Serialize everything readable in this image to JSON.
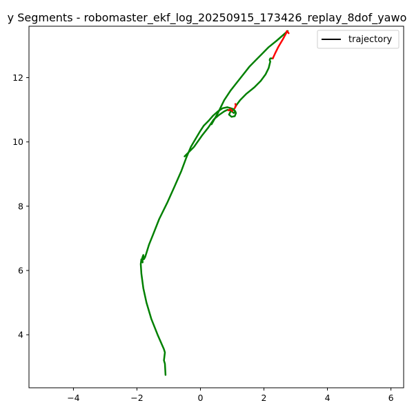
{
  "chart_data": {
    "type": "line",
    "title": "y Segments - robomaster_ekf_log_20250915_173426_replay_8dof_yawo",
    "xlabel": "",
    "ylabel": "",
    "xlim": [
      -5.4,
      6.4
    ],
    "ylim": [
      2.35,
      13.6
    ],
    "xticks": [
      -4,
      -2,
      0,
      2,
      4,
      6
    ],
    "yticks": [
      4,
      6,
      8,
      10,
      12
    ],
    "grid": false,
    "legend": {
      "placement": "top-right",
      "entries": [
        {
          "label": "trajectory",
          "color": "#000000"
        }
      ]
    },
    "colors": {
      "main_path": "#008000",
      "flagged_path": "#ff0000"
    },
    "series": [
      {
        "name": "trajectory",
        "color": "#008000",
        "x": [
          -1.1,
          -1.12,
          -1.15,
          -1.12,
          -1.15,
          -1.35,
          -1.55,
          -1.7,
          -1.8,
          -1.86,
          -1.88,
          -1.86,
          -1.84,
          -1.82,
          -1.83,
          -1.8,
          -1.78,
          -1.74,
          -1.7,
          -1.62,
          -1.5,
          -1.3,
          -1.05,
          -0.8,
          -0.6,
          -0.45,
          -0.3,
          -0.15,
          0.0,
          0.1,
          0.25,
          0.4,
          0.55,
          0.7,
          0.85,
          0.95,
          1.05,
          1.12,
          1.08,
          0.98,
          0.9,
          0.95,
          1.05,
          1.1,
          1.05,
          0.95,
          0.85,
          0.75,
          0.6,
          0.42,
          0.25,
          0.05,
          -0.2,
          -0.5
        ],
        "y": [
          2.75,
          3.1,
          3.2,
          3.45,
          3.55,
          4.0,
          4.5,
          5.0,
          5.45,
          5.9,
          6.2,
          6.35,
          6.33,
          6.25,
          6.4,
          6.48,
          6.35,
          6.42,
          6.55,
          6.8,
          7.1,
          7.6,
          8.1,
          8.65,
          9.1,
          9.5,
          9.85,
          10.1,
          10.35,
          10.5,
          10.65,
          10.82,
          10.95,
          11.05,
          11.08,
          11.05,
          11.02,
          10.9,
          10.8,
          10.78,
          10.85,
          10.95,
          11.0,
          10.95,
          10.9,
          10.98,
          11.0,
          10.95,
          10.85,
          10.7,
          10.45,
          10.2,
          9.85,
          9.55
        ]
      },
      {
        "name": "",
        "color": "#008000",
        "x": [
          0.35,
          0.55,
          0.75,
          0.95,
          1.15,
          1.35,
          1.55,
          1.75,
          1.95,
          2.15,
          2.4,
          2.6,
          2.75
        ],
        "y": [
          10.55,
          10.9,
          11.3,
          11.6,
          11.85,
          12.1,
          12.35,
          12.55,
          12.75,
          12.95,
          13.15,
          13.32,
          13.45
        ]
      },
      {
        "name": "",
        "color": "#008000",
        "x": [
          1.1,
          1.25,
          1.45,
          1.7,
          1.9,
          2.05,
          2.15,
          2.2,
          2.18,
          2.2,
          2.28
        ],
        "y": [
          11.1,
          11.3,
          11.5,
          11.7,
          11.9,
          12.1,
          12.3,
          12.5,
          12.55,
          12.6,
          12.6
        ]
      },
      {
        "name": "",
        "color": "#ff0000",
        "x": [
          2.28,
          2.35,
          2.45,
          2.6,
          2.7,
          2.72,
          2.78
        ],
        "y": [
          12.6,
          12.75,
          12.95,
          13.2,
          13.38,
          13.45,
          13.38
        ]
      },
      {
        "name": "",
        "color": "#ff0000",
        "x": [
          0.88,
          0.95,
          1.0
        ],
        "y": [
          10.98,
          11.02,
          10.96
        ]
      },
      {
        "name": "",
        "color": "#ff0000",
        "x": [
          1.08,
          1.12,
          1.1
        ],
        "y": [
          11.05,
          11.12,
          11.18
        ]
      }
    ]
  }
}
